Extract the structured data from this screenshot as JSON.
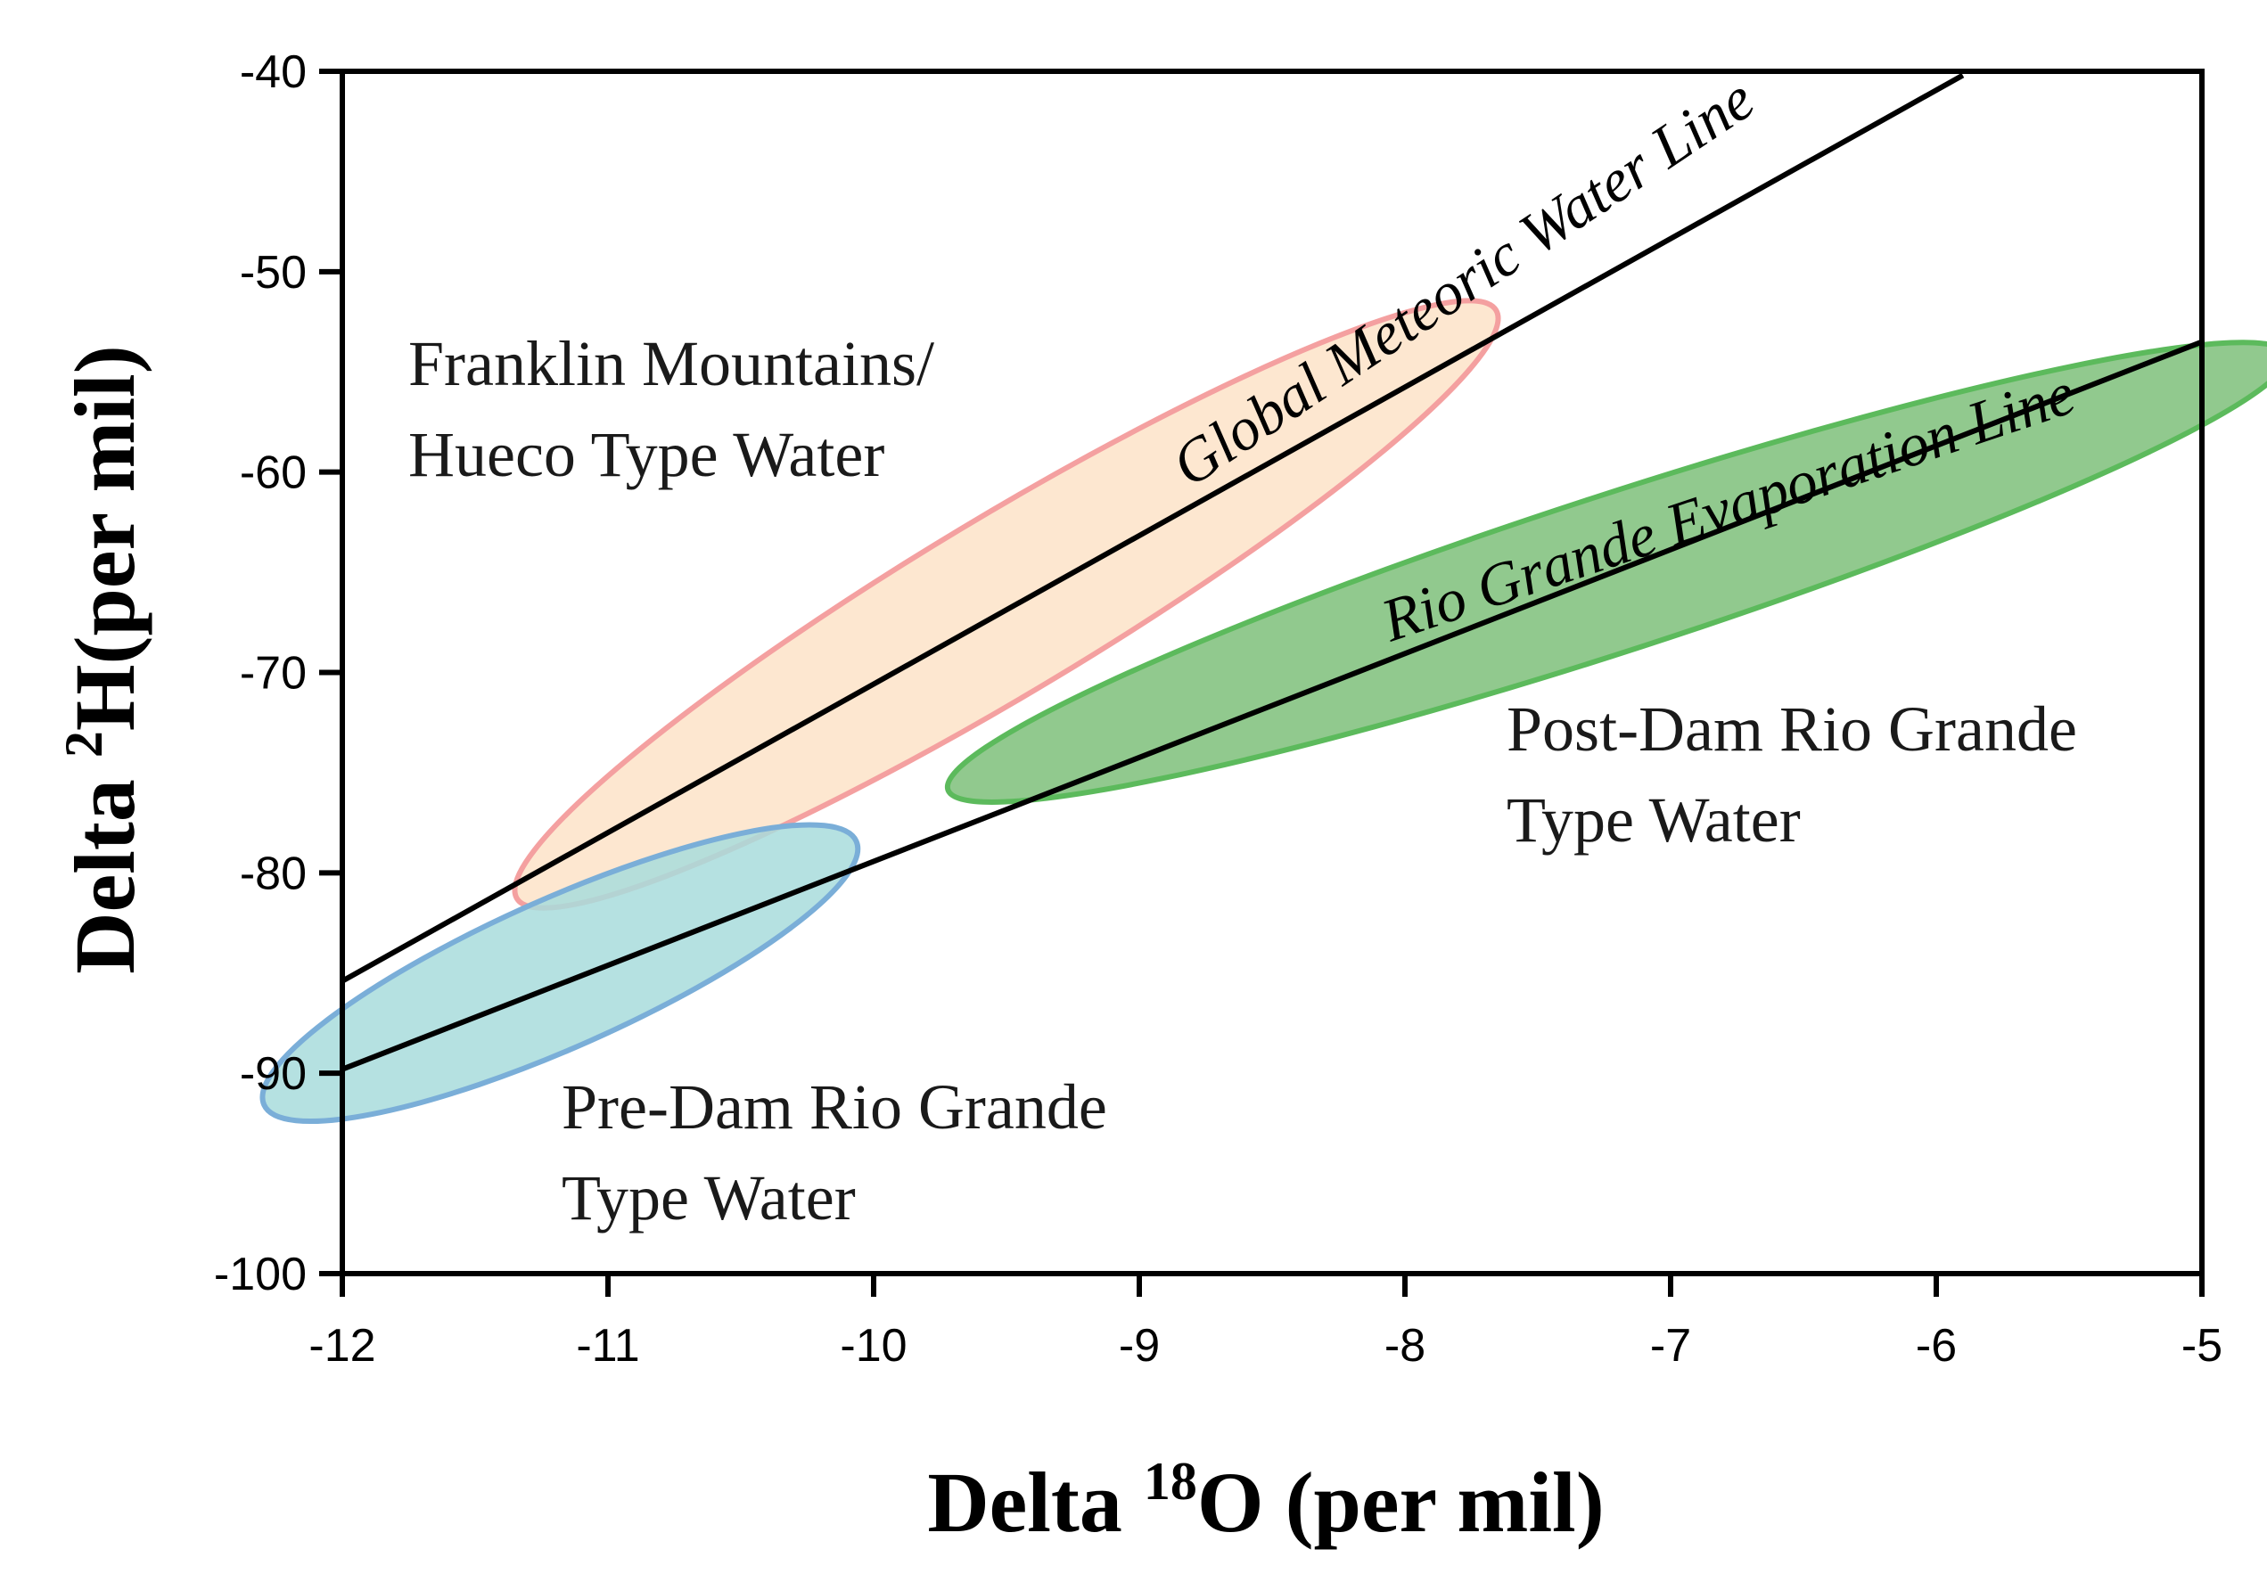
{
  "chart_data": {
    "type": "scatter",
    "title": "",
    "xlabel": {
      "prefix": "Delta ",
      "sup": "18",
      "suffix": "O (per mil)"
    },
    "ylabel": {
      "prefix": "Delta ",
      "sup": "2",
      "suffix": "H(per mil)"
    },
    "xlim": [
      -12,
      -5
    ],
    "ylim": [
      -100,
      -40
    ],
    "xticks": [
      -12,
      -11,
      -10,
      -9,
      -8,
      -7,
      -6,
      -5
    ],
    "yticks": [
      -100,
      -90,
      -80,
      -70,
      -60,
      -50,
      -40
    ],
    "grid": false,
    "lines": [
      {
        "name": "Global Meteoric Water Line",
        "x": [
          -12,
          -5.9
        ],
        "y": [
          -85.4,
          -40.2
        ],
        "color": "#000000"
      },
      {
        "name": "Rio Grande Evaporation Line",
        "x": [
          -12,
          -5
        ],
        "y": [
          -89.8,
          -53.5
        ],
        "color": "#000000"
      }
    ],
    "regions": [
      {
        "name": "Franklin Mountains/ Hueco Type Water",
        "cx": -9.5,
        "cy": -66.6,
        "rx": 2.15,
        "ry": 4.4,
        "angle_deg": -31,
        "fill": "#fde3c8",
        "stroke": "#f4a0a0"
      },
      {
        "name": "Post-Dam Rio Grande Type Water",
        "cx": -7.2,
        "cy": -65.0,
        "rx": 2.65,
        "ry": 3.9,
        "angle_deg": -18,
        "fill": "#7ec07a",
        "stroke": "#5cba5c"
      },
      {
        "name": "Pre-Dam Rio Grande Type Water",
        "cx": -11.18,
        "cy": -85.0,
        "rx": 1.22,
        "ry": 3.7,
        "angle_deg": -24,
        "fill": "#a8dcdc",
        "stroke": "#7aaed8"
      }
    ],
    "annotations": [
      {
        "id": "franklin",
        "lines": [
          "Franklin Mountains/",
          "Hueco Type Water"
        ]
      },
      {
        "id": "postdam",
        "lines": [
          "Post-Dam Rio Grande",
          "Type Water"
        ]
      },
      {
        "id": "predam",
        "lines": [
          "Pre-Dam Rio Grande",
          "Type Water"
        ]
      }
    ]
  }
}
